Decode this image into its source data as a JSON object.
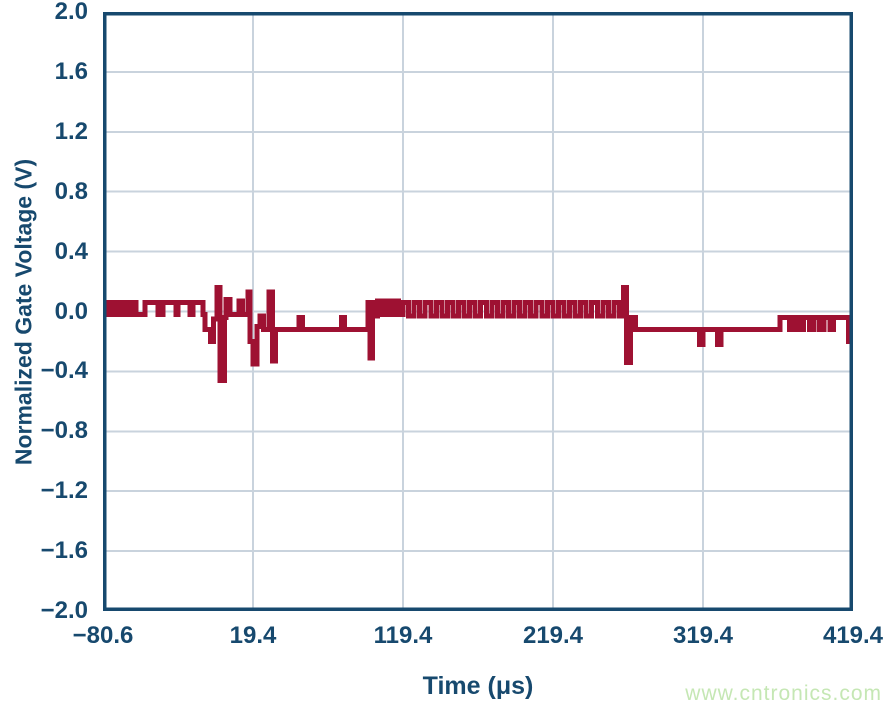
{
  "watermark": {
    "text": "www.cntronics.com",
    "color": "#c5e7b4"
  },
  "chart_data": {
    "type": "line",
    "title": "",
    "xlabel": "Time (μs)",
    "ylabel": "Normalized Gate Voltage (V)",
    "xlim": [
      -80.6,
      419.4
    ],
    "ylim": [
      -2.0,
      2.0
    ],
    "grid": true,
    "legend": null,
    "x_ticks": [
      "−80.6",
      "19.4",
      "119.4",
      "219.4",
      "319.4",
      "419.4"
    ],
    "x_tick_values": [
      -80.6,
      19.4,
      119.4,
      219.4,
      319.4,
      419.4
    ],
    "y_ticks": [
      "2.0",
      "1.6",
      "1.2",
      "0.8",
      "0.4",
      "0.0",
      "−0.4",
      "−0.8",
      "−1.2",
      "−1.6",
      "−2.0"
    ],
    "y_tick_values": [
      2.0,
      1.6,
      1.2,
      0.8,
      0.4,
      0.0,
      -0.4,
      -0.8,
      -1.2,
      -1.6,
      -2.0
    ],
    "colors": {
      "axis": "#17496e",
      "grid": "#c9d3dd",
      "trace": "#9e1132"
    },
    "series": [
      {
        "name": "normalized-gate-voltage",
        "color": "#9e1132",
        "step": true,
        "points": [
          [
            -80.6,
            -0.02
          ],
          [
            -78,
            0.06
          ],
          [
            -76,
            -0.02
          ],
          [
            -74,
            0.06
          ],
          [
            -72,
            -0.02
          ],
          [
            -70,
            0.06
          ],
          [
            -68,
            -0.02
          ],
          [
            -66,
            0.06
          ],
          [
            -64,
            -0.02
          ],
          [
            -60.5,
            0.06
          ],
          [
            -58.5,
            -0.02
          ],
          [
            -52.5,
            0.06
          ],
          [
            -44,
            -0.02
          ],
          [
            -40.5,
            0.06
          ],
          [
            -32,
            -0.02
          ],
          [
            -30.5,
            0.06
          ],
          [
            -22.5,
            -0.02
          ],
          [
            -20.5,
            0.06
          ],
          [
            -14,
            -0.02
          ],
          [
            -12.5,
            -0.12
          ],
          [
            -9,
            -0.2
          ],
          [
            -7,
            -0.05
          ],
          [
            -4.5,
            0.16
          ],
          [
            -2.5,
            -0.46
          ],
          [
            0.5,
            -0.04
          ],
          [
            1.5,
            0.08
          ],
          [
            4,
            -0.02
          ],
          [
            10,
            0.07
          ],
          [
            12.5,
            -0.02
          ],
          [
            16,
            0.13
          ],
          [
            17.5,
            -0.2
          ],
          [
            19.5,
            -0.35
          ],
          [
            22,
            -0.1
          ],
          [
            24,
            -0.03
          ],
          [
            26.5,
            -0.12
          ],
          [
            30,
            0.13
          ],
          [
            32.5,
            -0.33
          ],
          [
            34.5,
            -0.12
          ],
          [
            50,
            -0.04
          ],
          [
            52.5,
            -0.12
          ],
          [
            78.5,
            -0.04
          ],
          [
            80.5,
            -0.12
          ],
          [
            96,
            0.06
          ],
          [
            97.5,
            -0.31
          ],
          [
            99,
            0.06
          ],
          [
            100.5,
            -0.03
          ],
          [
            102.5,
            0.07
          ],
          [
            105,
            -0.02
          ],
          [
            108,
            0.07
          ],
          [
            111,
            -0.02
          ],
          [
            114,
            0.07
          ],
          [
            116.5,
            -0.02
          ],
          [
            119.4,
            0.06
          ],
          [
            123.1,
            -0.03
          ],
          [
            126.8,
            0.06
          ],
          [
            130.5,
            -0.03
          ],
          [
            134.2,
            0.06
          ],
          [
            137.9,
            -0.03
          ],
          [
            141.6,
            0.06
          ],
          [
            145.3,
            -0.03
          ],
          [
            149,
            0.06
          ],
          [
            152.7,
            -0.03
          ],
          [
            156.4,
            0.06
          ],
          [
            160.1,
            -0.03
          ],
          [
            163.8,
            0.06
          ],
          [
            167.5,
            -0.03
          ],
          [
            171.2,
            0.06
          ],
          [
            174.9,
            -0.03
          ],
          [
            178.6,
            0.06
          ],
          [
            182.3,
            -0.03
          ],
          [
            186,
            0.06
          ],
          [
            189.7,
            -0.03
          ],
          [
            193.4,
            0.06
          ],
          [
            197.1,
            -0.03
          ],
          [
            200.8,
            0.06
          ],
          [
            204.5,
            -0.03
          ],
          [
            208.2,
            0.06
          ],
          [
            211.9,
            -0.03
          ],
          [
            215.6,
            0.06
          ],
          [
            219.3,
            -0.03
          ],
          [
            223,
            0.06
          ],
          [
            226.7,
            -0.03
          ],
          [
            230.4,
            0.06
          ],
          [
            234.1,
            -0.03
          ],
          [
            237.8,
            0.06
          ],
          [
            241.5,
            -0.03
          ],
          [
            245.2,
            0.06
          ],
          [
            248.9,
            -0.03
          ],
          [
            252.6,
            0.06
          ],
          [
            256.3,
            -0.03
          ],
          [
            260,
            0.06
          ],
          [
            263.6,
            -0.03
          ],
          [
            266.5,
            0.16
          ],
          [
            268.5,
            -0.34
          ],
          [
            271,
            -0.04
          ],
          [
            274.5,
            -0.12
          ],
          [
            317,
            -0.22
          ],
          [
            319.5,
            -0.12
          ],
          [
            329,
            -0.22
          ],
          [
            331.5,
            -0.12
          ],
          [
            370.7,
            -0.04
          ],
          [
            377,
            -0.12
          ],
          [
            380,
            -0.04
          ],
          [
            383.5,
            -0.12
          ],
          [
            386.5,
            -0.04
          ],
          [
            390.5,
            -0.12
          ],
          [
            393.5,
            -0.04
          ],
          [
            397,
            -0.12
          ],
          [
            400,
            -0.04
          ],
          [
            404,
            -0.12
          ],
          [
            406.5,
            -0.04
          ],
          [
            416.5,
            -0.2
          ],
          [
            419.4,
            -0.2
          ]
        ]
      }
    ]
  }
}
